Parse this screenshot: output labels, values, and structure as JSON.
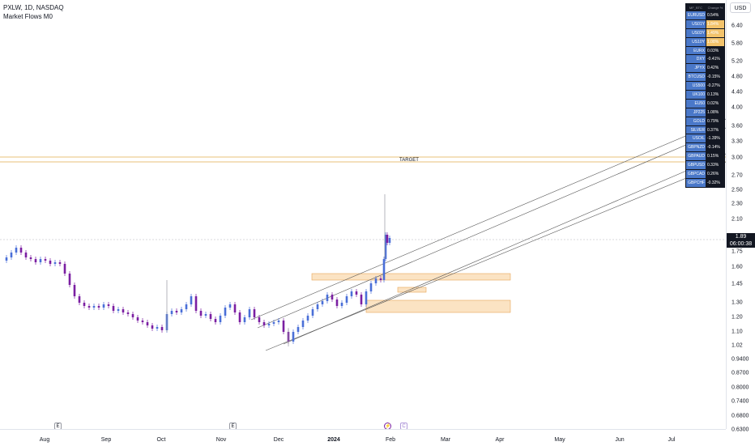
{
  "legend": {
    "symbol_line": "PXLW, 1D, NASDAQ",
    "indicator": "Market Flows M0"
  },
  "currency": "USD",
  "last_price": {
    "price": "1.89",
    "countdown": "06:00:38"
  },
  "target_label": "TARGET",
  "price_axis": [
    "6.40",
    "5.80",
    "5.20",
    "4.80",
    "4.40",
    "4.00",
    "3.60",
    "3.30",
    "3.00",
    "2.70",
    "2.50",
    "2.30",
    "2.10",
    "1.75",
    "1.60",
    "1.45",
    "1.30",
    "1.20",
    "1.10",
    "1.02",
    "0.9400",
    "0.8700",
    "0.8000",
    "0.7400",
    "0.6800",
    "0.6300"
  ],
  "time_axis": [
    "Aug",
    "Sep",
    "Oct",
    "Nov",
    "Dec",
    "2024",
    "Feb",
    "Mar",
    "Apr",
    "May",
    "Jun",
    "Jul"
  ],
  "events": [
    {
      "glyph": "E",
      "kind": "earnings"
    },
    {
      "glyph": "E",
      "kind": "earnings"
    },
    {
      "glyph": "⚡",
      "kind": "split"
    },
    {
      "glyph": "C",
      "kind": "c"
    }
  ],
  "colors": {
    "up": "#4a6fd8",
    "down": "#7b1fa2",
    "zone_fill": "#f6c27a",
    "zone_stroke": "#e8a456",
    "target_line": "#e8c07a",
    "channel": "#555555",
    "table_sym": "#4a78c9",
    "table_hl": "#f3c36b"
  },
  "market_flows": {
    "header": [
      "MF_BTC",
      "Change %"
    ],
    "rows": [
      {
        "symbol": "EURUSD",
        "change": "0.54%",
        "highlight": false
      },
      {
        "symbol": "US01Y",
        "change": "1.84%",
        "highlight": true
      },
      {
        "symbol": "US03Y",
        "change": "1.49%",
        "highlight": true
      },
      {
        "symbol": "US10Y",
        "change": "1.08%",
        "highlight": true
      },
      {
        "symbol": "EURX",
        "change": "0.03%",
        "highlight": false
      },
      {
        "symbol": "DXY",
        "change": "-0.41%",
        "highlight": false
      },
      {
        "symbol": "JPYX",
        "change": "0.42%",
        "highlight": false
      },
      {
        "symbol": "BTCUSD",
        "change": "-0.15%",
        "highlight": false
      },
      {
        "symbol": "US500",
        "change": "-0.27%",
        "highlight": false
      },
      {
        "symbol": "UK100",
        "change": "0.13%",
        "highlight": false
      },
      {
        "symbol": "EU50",
        "change": "0.02%",
        "highlight": false
      },
      {
        "symbol": "JP225",
        "change": "1.08%",
        "highlight": false
      },
      {
        "symbol": "GOLD",
        "change": "0.79%",
        "highlight": false
      },
      {
        "symbol": "SILVER",
        "change": "0.37%",
        "highlight": false
      },
      {
        "symbol": "USOIL",
        "change": "-1.39%",
        "highlight": false
      },
      {
        "symbol": "GBPNZD",
        "change": "-0.14%",
        "highlight": false
      },
      {
        "symbol": "GBPAUD",
        "change": "0.15%",
        "highlight": false
      },
      {
        "symbol": "GBPUSD",
        "change": "0.33%",
        "highlight": false
      },
      {
        "symbol": "GBPCAD",
        "change": "0.26%",
        "highlight": false
      },
      {
        "symbol": "GBPCHF",
        "change": "-0.32%",
        "highlight": false
      }
    ]
  }
}
